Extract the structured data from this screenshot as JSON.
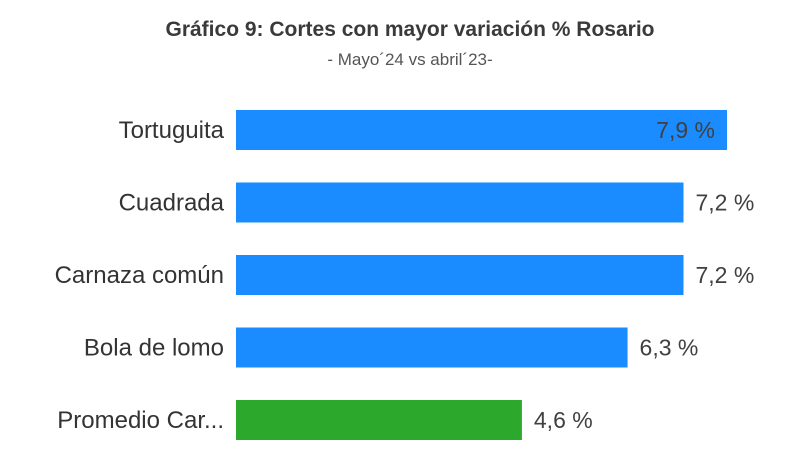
{
  "chart_data": {
    "type": "bar",
    "orientation": "horizontal",
    "title": "Gráfico 9: Cortes con mayor variación % Rosario",
    "subtitle": "- Mayo´24 vs abril´23-",
    "categories": [
      "Tortuguita",
      "Cuadrada",
      "Carnaza común",
      "Bola de lomo",
      "Promedio Car..."
    ],
    "values": [
      7.9,
      7.2,
      7.2,
      6.3,
      4.6
    ],
    "value_labels": [
      "7,9 %",
      "7,2 %",
      "7,2 %",
      "6,3 %",
      "4,6 %"
    ],
    "colors": [
      "#1a8cff",
      "#1a8cff",
      "#1a8cff",
      "#1a8cff",
      "#2ca82c"
    ],
    "xlim": [
      0,
      7.9
    ],
    "grid": false,
    "legend": "none"
  }
}
